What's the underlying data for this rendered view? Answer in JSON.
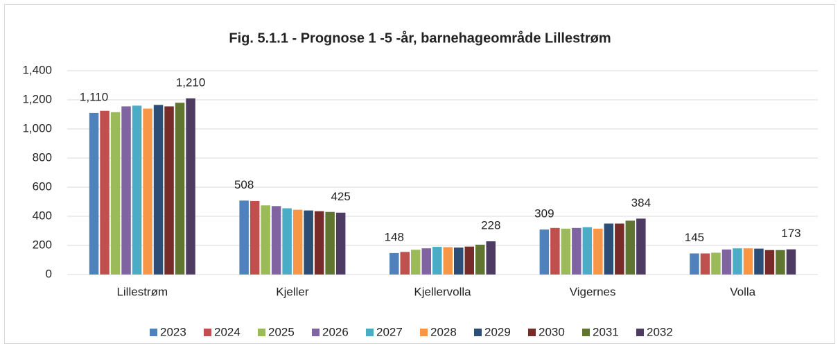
{
  "chart_data": {
    "type": "bar",
    "title": "Fig. 5.1.1 - Prognose 1 -5 -år, barnehageområde Lillestrøm",
    "categories": [
      "Lillestrøm",
      "Kjeller",
      "Kjellervolla",
      "Vigernes",
      "Volla"
    ],
    "series": [
      {
        "name": "2023",
        "color": "#4f81bd",
        "values": [
          1110,
          508,
          148,
          309,
          145
        ],
        "value_labels": [
          "1,110",
          "508",
          "148",
          "309",
          "145"
        ]
      },
      {
        "name": "2024",
        "color": "#c0504d",
        "values": [
          1125,
          505,
          155,
          320,
          145
        ]
      },
      {
        "name": "2025",
        "color": "#9bbb59",
        "values": [
          1115,
          475,
          170,
          315,
          150
        ]
      },
      {
        "name": "2026",
        "color": "#8064a2",
        "values": [
          1155,
          470,
          180,
          320,
          172
        ]
      },
      {
        "name": "2027",
        "color": "#4bacc6",
        "values": [
          1160,
          455,
          190,
          325,
          180
        ]
      },
      {
        "name": "2028",
        "color": "#f79646",
        "values": [
          1140,
          445,
          188,
          315,
          180
        ]
      },
      {
        "name": "2029",
        "color": "#2c4d75",
        "values": [
          1165,
          440,
          185,
          350,
          178
        ]
      },
      {
        "name": "2030",
        "color": "#772c2a",
        "values": [
          1155,
          435,
          192,
          350,
          168
        ]
      },
      {
        "name": "2031",
        "color": "#5f7530",
        "values": [
          1180,
          430,
          205,
          370,
          168
        ]
      },
      {
        "name": "2032",
        "color": "#4d3b62",
        "values": [
          1210,
          425,
          228,
          384,
          173
        ],
        "value_labels": [
          "1,210",
          "425",
          "228",
          "384",
          "173"
        ]
      }
    ],
    "ylim": [
      0,
      1400
    ],
    "yticks": [
      0,
      200,
      400,
      600,
      800,
      {
        "value": 1000,
        "label": "1,000"
      },
      {
        "value": 1200,
        "label": "1,200"
      },
      {
        "value": 1400,
        "label": "1,400"
      }
    ],
    "grid": true,
    "legend": "bottom"
  }
}
